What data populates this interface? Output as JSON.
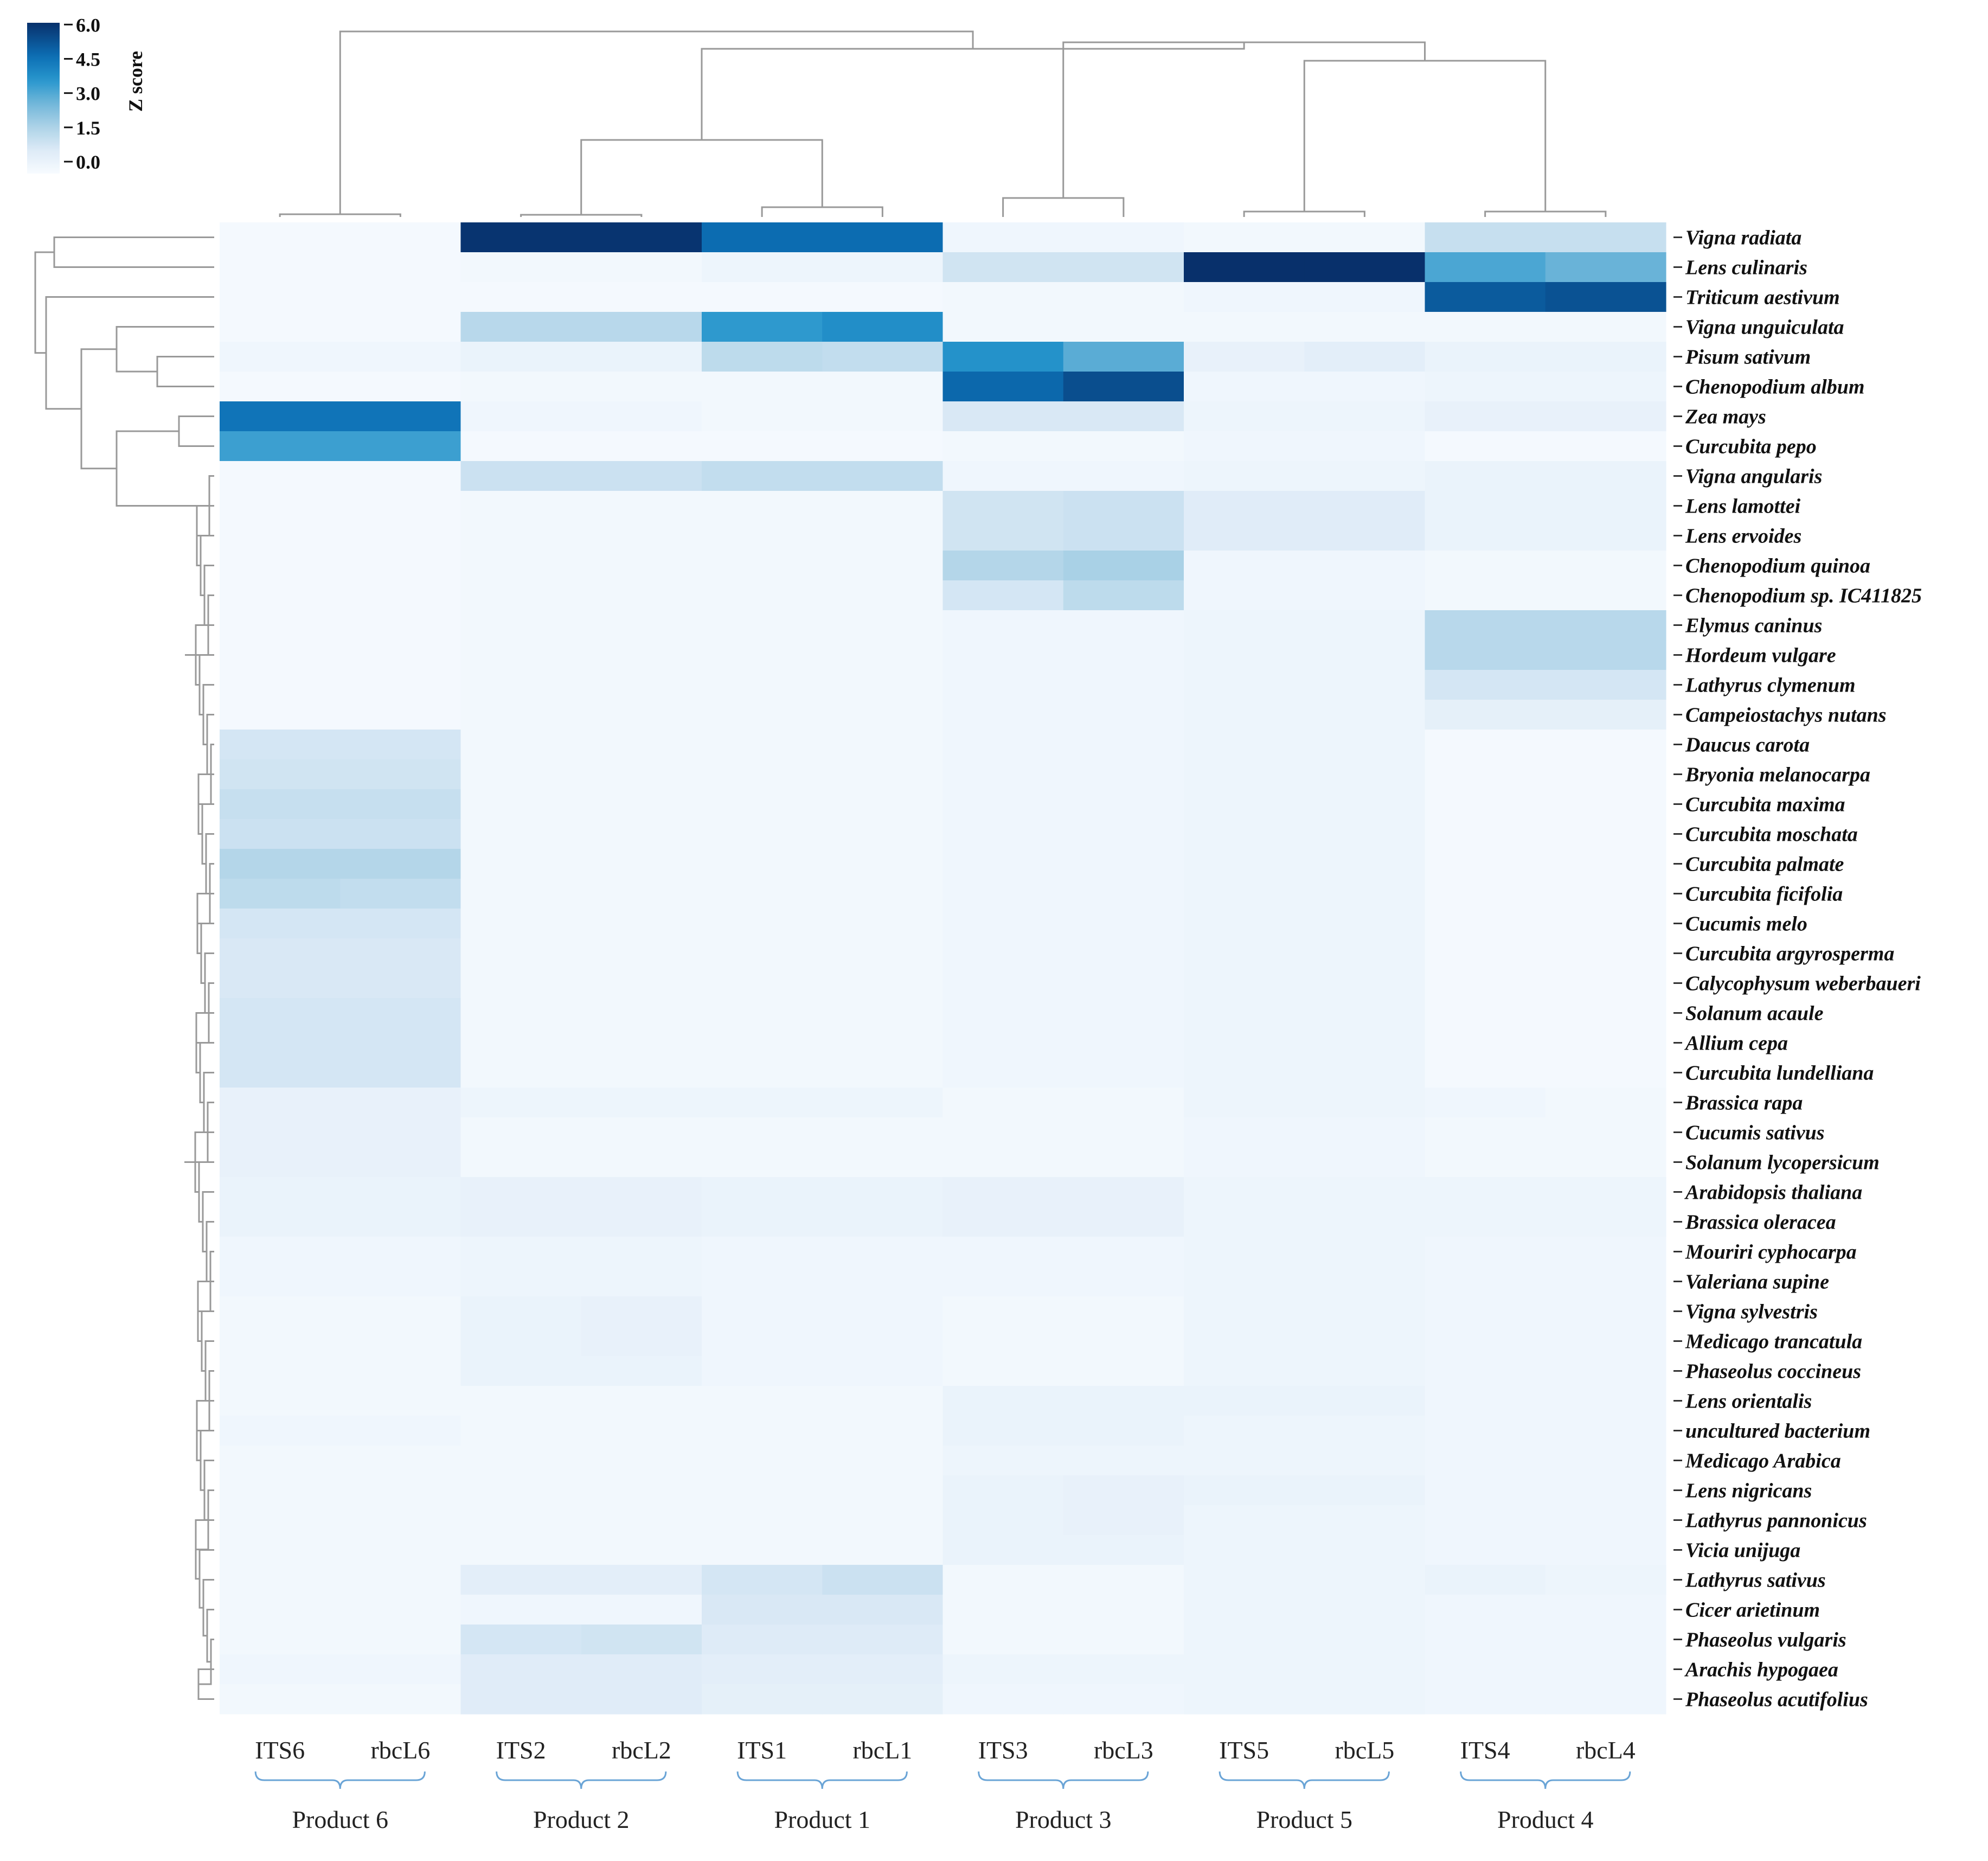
{
  "chart_data": {
    "type": "heatmap",
    "title": "",
    "colorbar": {
      "title": "Z score",
      "ticks": [
        "6.0",
        "4.5",
        "3.0",
        "1.5",
        "0.0"
      ],
      "tick_values": [
        6.0,
        4.5,
        3.0,
        1.5,
        0.0
      ],
      "range": [
        0,
        6.6
      ],
      "color_low": "#f7fbff",
      "color_high": "#08306b"
    },
    "columns": [
      "ITS6",
      "rbcL6",
      "ITS2",
      "rbcL2",
      "ITS1",
      "rbcL1",
      "ITS3",
      "rbcL3",
      "ITS5",
      "rbcL5",
      "ITS4",
      "rbcL4"
    ],
    "groups": [
      {
        "label": "Product 6",
        "columns": [
          "ITS6",
          "rbcL6"
        ]
      },
      {
        "label": "Product 2",
        "columns": [
          "ITS2",
          "rbcL2"
        ]
      },
      {
        "label": "Product 1",
        "columns": [
          "ITS1",
          "rbcL1"
        ]
      },
      {
        "label": "Product 3",
        "columns": [
          "ITS3",
          "rbcL3"
        ]
      },
      {
        "label": "Product 5",
        "columns": [
          "ITS5",
          "rbcL5"
        ]
      },
      {
        "label": "Product 4",
        "columns": [
          "ITS4",
          "rbcL4"
        ]
      }
    ],
    "rows": [
      "Vigna radiata",
      "Lens culinaris",
      "Triticum aestivum",
      "Vigna unguiculata",
      "Pisum sativum",
      "Chenopodium album",
      "Zea mays",
      "Curcubita pepo",
      "Vigna angularis",
      "Lens lamottei",
      "Lens ervoides",
      "Chenopodium quinoa",
      "Chenopodium sp. IC411825",
      "Elymus caninus",
      "Hordeum vulgare",
      "Lathyrus clymenum",
      "Campeiostachys nutans",
      "Daucus carota",
      "Bryonia melanocarpa",
      "Curcubita maxima",
      "Curcubita moschata",
      "Curcubita palmate",
      "Curcubita ficifolia",
      "Cucumis melo",
      "Curcubita argyrosperma",
      "Calycophysum weberbaueri",
      "Solanum acaule",
      "Allium  cepa",
      "Curcubita lundelliana",
      "Brassica rapa",
      "Cucumis sativus",
      "Solanum lycopersicum",
      "Arabidopsis thaliana",
      "Brassica  oleracea",
      "Mouriri cyphocarpa",
      "Valeriana supine",
      "Vigna sylvestris",
      "Medicago trancatula",
      "Phaseolus coccineus",
      "Lens orientalis",
      "uncultured bacterium",
      "Medicago Arabica",
      "Lens nigricans",
      "Lathyrus pannonicus",
      "Vicia unijuga",
      "Lathyrus sativus",
      "Cicer arietinum",
      "Phaseolus vulgaris",
      "Arachis hypogaea",
      "Phaseolus acutifolius"
    ],
    "values": [
      [
        0.1,
        0.1,
        6.5,
        6.5,
        5.2,
        5.2,
        0.3,
        0.3,
        0.2,
        0.2,
        1.5,
        1.5
      ],
      [
        0.1,
        0.1,
        0.2,
        0.2,
        0.4,
        0.4,
        1.3,
        1.3,
        6.6,
        6.6,
        3.6,
        3.2
      ],
      [
        0.1,
        0.1,
        0.1,
        0.1,
        0.1,
        0.1,
        0.2,
        0.2,
        0.3,
        0.3,
        5.6,
        5.8
      ],
      [
        0.1,
        0.1,
        1.8,
        1.8,
        4.0,
        4.3,
        0.2,
        0.2,
        0.2,
        0.2,
        0.2,
        0.2
      ],
      [
        0.3,
        0.3,
        0.5,
        0.5,
        1.7,
        1.6,
        4.2,
        3.4,
        0.6,
        0.8,
        0.5,
        0.5
      ],
      [
        0.1,
        0.1,
        0.2,
        0.2,
        0.2,
        0.2,
        5.3,
        5.9,
        0.3,
        0.3,
        0.4,
        0.4
      ],
      [
        5.0,
        5.0,
        0.3,
        0.3,
        0.2,
        0.2,
        1.1,
        1.1,
        0.4,
        0.4,
        0.6,
        0.6
      ],
      [
        3.8,
        3.8,
        0.1,
        0.1,
        0.1,
        0.1,
        0.2,
        0.2,
        0.3,
        0.3,
        0.1,
        0.1
      ],
      [
        0.1,
        0.1,
        1.4,
        1.4,
        1.6,
        1.6,
        0.3,
        0.3,
        0.4,
        0.4,
        0.5,
        0.5
      ],
      [
        0.1,
        0.1,
        0.2,
        0.2,
        0.2,
        0.2,
        1.3,
        1.4,
        0.9,
        0.9,
        0.5,
        0.5
      ],
      [
        0.1,
        0.1,
        0.2,
        0.2,
        0.2,
        0.2,
        1.3,
        1.4,
        0.9,
        0.9,
        0.5,
        0.5
      ],
      [
        0.1,
        0.1,
        0.2,
        0.2,
        0.2,
        0.2,
        1.9,
        2.1,
        0.3,
        0.3,
        0.2,
        0.2
      ],
      [
        0.1,
        0.1,
        0.2,
        0.2,
        0.2,
        0.2,
        1.2,
        1.7,
        0.3,
        0.3,
        0.2,
        0.2
      ],
      [
        0.1,
        0.1,
        0.2,
        0.2,
        0.2,
        0.2,
        0.3,
        0.3,
        0.4,
        0.4,
        1.8,
        1.8
      ],
      [
        0.1,
        0.1,
        0.2,
        0.2,
        0.2,
        0.2,
        0.3,
        0.3,
        0.4,
        0.4,
        1.8,
        1.8
      ],
      [
        0.1,
        0.1,
        0.2,
        0.2,
        0.2,
        0.2,
        0.3,
        0.3,
        0.4,
        0.4,
        1.2,
        1.2
      ],
      [
        0.1,
        0.1,
        0.2,
        0.2,
        0.2,
        0.2,
        0.3,
        0.3,
        0.4,
        0.4,
        0.7,
        0.7
      ],
      [
        1.2,
        1.2,
        0.2,
        0.2,
        0.2,
        0.2,
        0.3,
        0.3,
        0.4,
        0.4,
        0.1,
        0.1
      ],
      [
        1.3,
        1.3,
        0.2,
        0.2,
        0.2,
        0.2,
        0.3,
        0.3,
        0.4,
        0.4,
        0.1,
        0.1
      ],
      [
        1.5,
        1.5,
        0.2,
        0.2,
        0.2,
        0.2,
        0.3,
        0.3,
        0.4,
        0.4,
        0.1,
        0.1
      ],
      [
        1.4,
        1.4,
        0.2,
        0.2,
        0.2,
        0.2,
        0.3,
        0.3,
        0.4,
        0.4,
        0.1,
        0.1
      ],
      [
        1.9,
        1.9,
        0.2,
        0.2,
        0.2,
        0.2,
        0.3,
        0.3,
        0.4,
        0.4,
        0.1,
        0.1
      ],
      [
        1.7,
        1.6,
        0.2,
        0.2,
        0.2,
        0.2,
        0.3,
        0.3,
        0.4,
        0.4,
        0.1,
        0.1
      ],
      [
        1.2,
        1.2,
        0.2,
        0.2,
        0.2,
        0.2,
        0.3,
        0.3,
        0.4,
        0.4,
        0.1,
        0.1
      ],
      [
        1.1,
        1.1,
        0.2,
        0.2,
        0.2,
        0.2,
        0.3,
        0.3,
        0.4,
        0.4,
        0.1,
        0.1
      ],
      [
        1.1,
        1.1,
        0.2,
        0.2,
        0.2,
        0.2,
        0.3,
        0.3,
        0.4,
        0.4,
        0.1,
        0.1
      ],
      [
        1.2,
        1.2,
        0.2,
        0.2,
        0.2,
        0.2,
        0.3,
        0.3,
        0.4,
        0.4,
        0.1,
        0.1
      ],
      [
        1.2,
        1.2,
        0.2,
        0.2,
        0.2,
        0.2,
        0.3,
        0.3,
        0.4,
        0.4,
        0.1,
        0.1
      ],
      [
        1.2,
        1.2,
        0.2,
        0.2,
        0.2,
        0.2,
        0.3,
        0.3,
        0.4,
        0.4,
        0.1,
        0.1
      ],
      [
        0.6,
        0.6,
        0.4,
        0.4,
        0.4,
        0.4,
        0.2,
        0.2,
        0.4,
        0.4,
        0.3,
        0.2
      ],
      [
        0.6,
        0.6,
        0.2,
        0.2,
        0.2,
        0.2,
        0.2,
        0.2,
        0.3,
        0.3,
        0.2,
        0.2
      ],
      [
        0.6,
        0.6,
        0.2,
        0.2,
        0.2,
        0.2,
        0.2,
        0.2,
        0.3,
        0.3,
        0.2,
        0.2
      ],
      [
        0.5,
        0.5,
        0.6,
        0.6,
        0.5,
        0.5,
        0.6,
        0.6,
        0.4,
        0.4,
        0.4,
        0.4
      ],
      [
        0.5,
        0.5,
        0.6,
        0.6,
        0.5,
        0.5,
        0.6,
        0.6,
        0.4,
        0.4,
        0.4,
        0.4
      ],
      [
        0.3,
        0.3,
        0.4,
        0.4,
        0.3,
        0.3,
        0.3,
        0.3,
        0.4,
        0.4,
        0.3,
        0.3
      ],
      [
        0.3,
        0.3,
        0.4,
        0.4,
        0.3,
        0.3,
        0.3,
        0.3,
        0.4,
        0.4,
        0.3,
        0.3
      ],
      [
        0.2,
        0.2,
        0.5,
        0.6,
        0.3,
        0.3,
        0.2,
        0.2,
        0.4,
        0.4,
        0.3,
        0.3
      ],
      [
        0.2,
        0.2,
        0.5,
        0.6,
        0.3,
        0.3,
        0.2,
        0.2,
        0.4,
        0.4,
        0.3,
        0.3
      ],
      [
        0.2,
        0.2,
        0.5,
        0.5,
        0.3,
        0.3,
        0.2,
        0.2,
        0.4,
        0.4,
        0.3,
        0.3
      ],
      [
        0.2,
        0.2,
        0.2,
        0.2,
        0.2,
        0.2,
        0.5,
        0.5,
        0.5,
        0.5,
        0.3,
        0.3
      ],
      [
        0.3,
        0.3,
        0.2,
        0.2,
        0.2,
        0.2,
        0.5,
        0.5,
        0.4,
        0.4,
        0.3,
        0.3
      ],
      [
        0.2,
        0.2,
        0.2,
        0.2,
        0.2,
        0.2,
        0.4,
        0.4,
        0.4,
        0.4,
        0.3,
        0.3
      ],
      [
        0.2,
        0.2,
        0.2,
        0.2,
        0.2,
        0.2,
        0.5,
        0.6,
        0.5,
        0.5,
        0.3,
        0.3
      ],
      [
        0.2,
        0.2,
        0.2,
        0.2,
        0.2,
        0.2,
        0.5,
        0.6,
        0.4,
        0.4,
        0.3,
        0.3
      ],
      [
        0.2,
        0.2,
        0.2,
        0.2,
        0.2,
        0.2,
        0.5,
        0.5,
        0.4,
        0.4,
        0.3,
        0.3
      ],
      [
        0.2,
        0.2,
        0.8,
        0.8,
        1.2,
        1.4,
        0.2,
        0.2,
        0.4,
        0.4,
        0.5,
        0.4
      ],
      [
        0.2,
        0.2,
        0.3,
        0.3,
        1.1,
        1.1,
        0.2,
        0.2,
        0.4,
        0.4,
        0.3,
        0.3
      ],
      [
        0.2,
        0.2,
        1.2,
        1.3,
        1.0,
        1.0,
        0.2,
        0.2,
        0.4,
        0.4,
        0.3,
        0.3
      ],
      [
        0.3,
        0.3,
        0.9,
        0.9,
        0.8,
        0.8,
        0.4,
        0.4,
        0.4,
        0.4,
        0.3,
        0.3
      ],
      [
        0.2,
        0.2,
        0.9,
        0.9,
        0.7,
        0.7,
        0.3,
        0.3,
        0.4,
        0.4,
        0.3,
        0.3
      ]
    ],
    "xlabel": "",
    "ylabel": "",
    "dendrogram_top": true,
    "dendrogram_left": true
  }
}
